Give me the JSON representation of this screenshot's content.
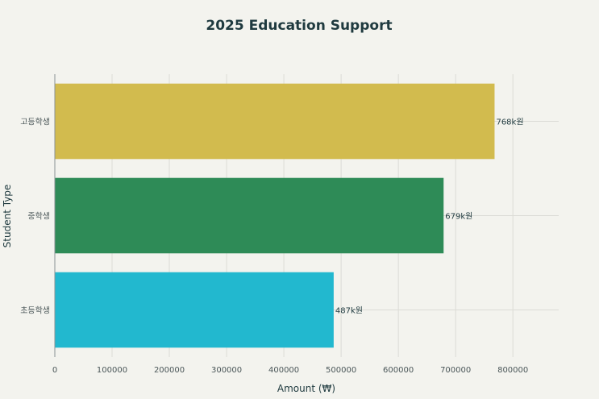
{
  "chart_data": {
    "type": "bar",
    "orientation": "horizontal",
    "title": "2025 Education Support",
    "xlabel": "Amount (₩)",
    "ylabel": "Student Type",
    "categories": [
      "고등학생",
      "중학생",
      "초등학생"
    ],
    "values": [
      768000,
      679000,
      487000
    ],
    "data_labels": [
      "768k원",
      "679k원",
      "487k원"
    ],
    "colors": [
      "#d2bb4e",
      "#2e8b57",
      "#22b8cf"
    ],
    "xlim": [
      0,
      880000
    ],
    "x_ticks": [
      0,
      100000,
      200000,
      300000,
      400000,
      500000,
      600000,
      700000,
      800000
    ],
    "grid": true
  }
}
